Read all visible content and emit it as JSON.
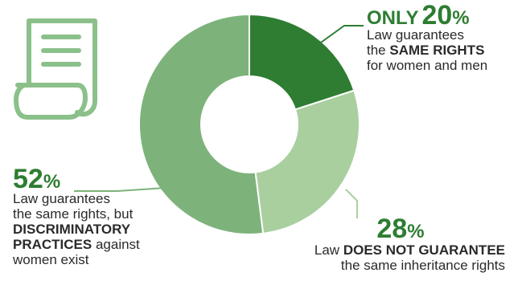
{
  "colors": {
    "dark_green": "#2e7d32",
    "mid_green": "#7db37a",
    "light_green": "#a9cf9f",
    "icon_green": "#8bc08a",
    "text": "#2a2a2a"
  },
  "icon": "document-scroll-icon",
  "chart_data": {
    "type": "pie",
    "donut": true,
    "slices": [
      {
        "value": 20,
        "color": "#2e7d32"
      },
      {
        "value": 28,
        "color": "#a9cf9f"
      },
      {
        "value": 52,
        "color": "#7db37a"
      }
    ]
  },
  "callouts": {
    "c20": {
      "prefix": "ONLY",
      "number": "20",
      "symbol": "%",
      "line1": "Law guarantees",
      "line2_pre": "the ",
      "line2_bold": "SAME RIGHTS",
      "line3": "for women and men"
    },
    "c52": {
      "number": "52",
      "symbol": "%",
      "line1": "Law guarantees",
      "line2": "the same rights, but",
      "line3_bold": "DISCRIMINATORY",
      "line4_bold": "PRACTICES",
      "line4_rest": " against",
      "line5": "women exist"
    },
    "c28": {
      "number": "28",
      "symbol": "%",
      "line1_pre": "Law ",
      "line1_bold": "DOES NOT GUARANTEE",
      "line2": "the same inheritance rights"
    }
  }
}
